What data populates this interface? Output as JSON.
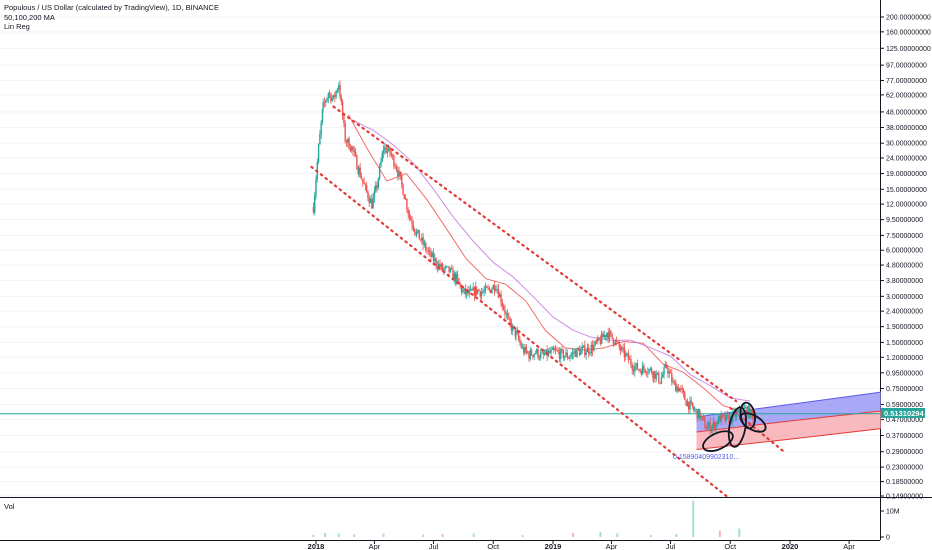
{
  "header": {
    "title": "Populous / US Dollar (calculated by TradingView), 1D, BINANCE",
    "indicator_ma": "50,100,200 MA",
    "indicator_linreg": "Lin Reg"
  },
  "volume_pane": {
    "label": "Vol",
    "ticks": [
      "10M",
      "0"
    ]
  },
  "colors": {
    "up": "#26a69a",
    "down": "#ef5350",
    "ma50": "#ef5350",
    "ma100": "#c678dd",
    "channel": "#e53935",
    "price_line": "#26a69a",
    "price_badge": "#26a69a",
    "regression_upper": "#8c8cf5",
    "regression_lower": "#f5a3a8"
  },
  "chart_data": {
    "type": "line",
    "title": "Populous / US Dollar (calculated by TradingView), 1D, BINANCE",
    "y_scale": "log",
    "ylim": [
      0.149,
      200
    ],
    "y_ticks": [
      "200.00000000",
      "160.00000000",
      "125.00000000",
      "97.00000000",
      "77.00000000",
      "62.00000000",
      "48.00000000",
      "38.00000000",
      "30.00000000",
      "24.00000000",
      "19.00000000",
      "15.00000000",
      "12.00000000",
      "9.50000000",
      "7.50000000",
      "6.00000000",
      "4.80000000",
      "3.80000000",
      "3.00000000",
      "2.40000000",
      "1.90000000",
      "1.50000000",
      "1.20000000",
      "0.95000000",
      "0.75000000",
      "0.59000000",
      "0.47000000",
      "0.37000000",
      "0.29000000",
      "0.23000000",
      "0.18500000",
      "0.14900000"
    ],
    "x_ticks": [
      "2018",
      "Apr",
      "Jul",
      "Oct",
      "2019",
      "Apr",
      "Jul",
      "Oct",
      "2020",
      "Apr"
    ],
    "last_price": "0.51310294",
    "annotation": "0.15890409902310...",
    "series": [
      {
        "kind": "price",
        "x": [
          "2017-12-28",
          "2018-01-05",
          "2018-01-12",
          "2018-01-20",
          "2018-01-28",
          "2018-02-05",
          "2018-02-15",
          "2018-02-25",
          "2018-03-08",
          "2018-03-18",
          "2018-03-28",
          "2018-04-05",
          "2018-04-15",
          "2018-04-25",
          "2018-05-05",
          "2018-05-15",
          "2018-05-25",
          "2018-06-05",
          "2018-06-15",
          "2018-06-25",
          "2018-07-05",
          "2018-07-15",
          "2018-07-25",
          "2018-08-05",
          "2018-08-15",
          "2018-08-25",
          "2018-09-05",
          "2018-09-15",
          "2018-09-25",
          "2018-10-05",
          "2018-10-15",
          "2018-10-25",
          "2018-11-05",
          "2018-11-15",
          "2018-11-25",
          "2018-12-05",
          "2018-12-15",
          "2018-12-25",
          "2019-01-05",
          "2019-01-15",
          "2019-01-25",
          "2019-02-05",
          "2019-02-15",
          "2019-02-25",
          "2019-03-05",
          "2019-03-15",
          "2019-03-25",
          "2019-04-05",
          "2019-04-15",
          "2019-04-25",
          "2019-05-05",
          "2019-05-15",
          "2019-05-25",
          "2019-06-05",
          "2019-06-15",
          "2019-06-25",
          "2019-07-05",
          "2019-07-15",
          "2019-07-25",
          "2019-08-05",
          "2019-08-15",
          "2019-08-25",
          "2019-09-05",
          "2019-09-15",
          "2019-09-25",
          "2019-10-05",
          "2019-10-15",
          "2019-10-25",
          "2019-11-05",
          "2019-11-10"
        ],
        "y": [
          11.5,
          28,
          52,
          64,
          58,
          74,
          32,
          28,
          20,
          15,
          12,
          16,
          28,
          26,
          21,
          15,
          10,
          7.8,
          6.6,
          5.6,
          5.0,
          4.5,
          4.4,
          3.9,
          3.2,
          3.1,
          3.3,
          3.2,
          3.3,
          3.6,
          2.7,
          2.0,
          1.7,
          1.35,
          1.25,
          1.3,
          1.22,
          1.27,
          1.3,
          1.25,
          1.22,
          1.3,
          1.33,
          1.35,
          1.42,
          1.55,
          1.75,
          1.55,
          1.35,
          1.2,
          1.05,
          1.0,
          1.02,
          0.95,
          0.85,
          1.05,
          0.8,
          0.75,
          0.62,
          0.55,
          0.5,
          0.42,
          0.43,
          0.48,
          0.47,
          0.49,
          0.52,
          0.55,
          0.5,
          0.51
        ]
      },
      {
        "kind": "ma50",
        "x": [
          "2018-02-20",
          "2018-03-20",
          "2018-04-20",
          "2018-05-20",
          "2018-06-20",
          "2018-07-20",
          "2018-08-20",
          "2018-09-20",
          "2018-10-20",
          "2018-11-20",
          "2018-12-20",
          "2019-01-20",
          "2019-02-20",
          "2019-03-20",
          "2019-04-20",
          "2019-05-20",
          "2019-06-20",
          "2019-07-20",
          "2019-08-20",
          "2019-09-20",
          "2019-10-20",
          "2019-11-10"
        ],
        "y": [
          46,
          28,
          17,
          19,
          13,
          8.4,
          5.3,
          3.9,
          3.6,
          2.8,
          1.8,
          1.38,
          1.34,
          1.38,
          1.52,
          1.48,
          1.08,
          0.96,
          0.76,
          0.58,
          0.53,
          0.52
        ]
      },
      {
        "kind": "ma100",
        "x": [
          "2018-03-01",
          "2018-04-01",
          "2018-05-01",
          "2018-06-01",
          "2018-07-01",
          "2018-08-01",
          "2018-09-01",
          "2018-10-01",
          "2018-11-01",
          "2018-12-01",
          "2019-01-01",
          "2019-02-01",
          "2019-03-01",
          "2019-04-01",
          "2019-05-01",
          "2019-06-01",
          "2019-07-01",
          "2019-08-01",
          "2019-09-01",
          "2019-10-01",
          "2019-11-01"
        ],
        "y": [
          42,
          36,
          29,
          22,
          15,
          9.8,
          6.8,
          5.0,
          4.0,
          3.0,
          2.2,
          1.8,
          1.62,
          1.55,
          1.55,
          1.38,
          1.22,
          0.92,
          0.78,
          0.65,
          0.62
        ]
      }
    ],
    "channel": {
      "upper": {
        "x": [
          "2018-01-28",
          "2019-10-10"
        ],
        "y": [
          52,
          0.62
        ]
      },
      "lower": {
        "x": [
          "2017-12-25",
          "2019-09-25"
        ],
        "y": [
          21,
          0.149
        ]
      },
      "extension": {
        "x": [
          "2019-10-01",
          "2019-12-25"
        ],
        "y": [
          0.56,
          0.285
        ]
      }
    },
    "regression": {
      "x": [
        "2019-08-10",
        "2019-12-31",
        "2020-05-20"
      ],
      "upper": [
        0.49,
        0.59,
        0.71
      ],
      "mid": [
        0.39,
        0.46,
        0.535
      ],
      "lower": [
        0.3,
        0.35,
        0.41
      ]
    },
    "volume": {
      "x": [
        "2017-12-28",
        "2018-01-15",
        "2018-02-05",
        "2018-03-01",
        "2018-04-15",
        "2018-06-15",
        "2018-07-15",
        "2018-09-01",
        "2018-11-15",
        "2019-02-01",
        "2019-03-15",
        "2019-04-10",
        "2019-06-01",
        "2019-07-10",
        "2019-08-05",
        "2019-09-15",
        "2019-10-15"
      ],
      "y": [
        0.8,
        1.6,
        1.4,
        1.0,
        1.3,
        0.9,
        1.1,
        1.4,
        0.7,
        1.6,
        1.9,
        1.4,
        0.7,
        1.2,
        14,
        2.5,
        3.3
      ]
    }
  }
}
